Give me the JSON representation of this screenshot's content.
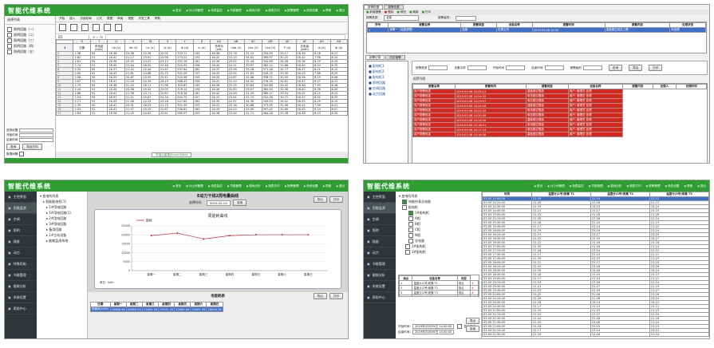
{
  "app": {
    "title": "智能代维系统",
    "menu": [
      "首页",
      "分公司管理",
      "电表监控",
      "节能管理",
      "能耗分析",
      "报表打印",
      "报警管理",
      "系统设置",
      "帮助",
      "退出"
    ]
  },
  "colors": {
    "brand_green": "#2e9e33",
    "alarm_red": "#d9261c",
    "selection_blue": "#3b6fd0",
    "dark_sidebar": "#2f3538"
  },
  "panel1": {
    "side_title": "选择列表",
    "tree": [
      "照明回路（一）",
      "照明回路（二）",
      "照明回路（三）",
      "照明回路（四）",
      "照明回路（五）"
    ],
    "ribbon_tabs": [
      "开始",
      "插入",
      "页面布局",
      "公式",
      "数据",
      "审阅",
      "视图",
      "开发工具",
      "帮助"
    ],
    "cellref": "D5",
    "formula_symbols": "✕ ✓ fx",
    "col_letters": [
      "S",
      "T",
      "U",
      "V",
      "W",
      "X",
      "Y",
      "Z",
      "AA",
      "AB",
      "AC",
      "AD",
      "AE",
      "AF",
      "AG",
      "AH"
    ],
    "head1": [
      "日期",
      "有电量 (kWh)",
      "Ua (V)",
      "Ub (V)",
      "Uc (V)",
      "Ia (A)",
      "Ib (A)",
      "Ic (A)",
      "总有功 (kW)",
      "Uab (V)",
      "Ubc (V)",
      "Uca (V)",
      "P (A)",
      "总电量 (kWh)",
      "Ia (A)",
      "Ib (A)"
    ],
    "rows": [
      [
        "2.36",
        "50",
        "16.38",
        "21.38",
        "25.26",
        "22.02",
        "333.71",
        "160",
        "16.38",
        "23.76",
        "31.15",
        "354.59",
        "33.17",
        "16.38",
        "8.18",
        "8.27"
      ],
      [
        "2.82",
        "51",
        "16.42",
        "21.17",
        "23.91",
        "22.96",
        "274.22",
        "155",
        "16.42",
        "22.15",
        "34.81",
        "380.97",
        "30.25",
        "16.42",
        "7.96",
        "8.10"
      ],
      [
        "2.61",
        "50",
        "16.38",
        "20.93",
        "24.57",
        "23.13",
        "352.16",
        "161",
        "16.38",
        "25.02",
        "32.44",
        "342.60",
        "34.28",
        "16.38",
        "8.33",
        "8.19"
      ],
      [
        "2.74",
        "51",
        "16.40",
        "21.44",
        "26.02",
        "22.48",
        "310.35",
        "158",
        "16.40",
        "24.11",
        "30.97",
        "365.12",
        "31.86",
        "16.40",
        "8.04",
        "8.35"
      ],
      [
        "2.35",
        "50",
        "16.37",
        "21.02",
        "25.44",
        "21.87",
        "297.64",
        "162",
        "16.37",
        "23.58",
        "33.26",
        "371.48",
        "32.77",
        "16.37",
        "8.21",
        "8.12"
      ],
      [
        "2.90",
        "52",
        "16.43",
        "21.61",
        "24.88",
        "22.75",
        "341.09",
        "157",
        "16.43",
        "22.94",
        "31.83",
        "349.25",
        "33.90",
        "16.43",
        "7.88",
        "8.29"
      ],
      [
        "2.58",
        "50",
        "16.39",
        "20.87",
        "25.93",
        "23.41",
        "322.56",
        "159",
        "16.39",
        "24.67",
        "32.08",
        "358.71",
        "30.95",
        "16.39",
        "8.15",
        "8.06"
      ],
      [
        "2.67",
        "51",
        "16.41",
        "21.29",
        "24.35",
        "22.19",
        "288.43",
        "156",
        "16.41",
        "23.20",
        "34.02",
        "376.30",
        "34.61",
        "16.41",
        "8.27",
        "8.31"
      ],
      [
        "2.79",
        "50",
        "16.38",
        "21.53",
        "26.11",
        "21.96",
        "305.87",
        "160",
        "16.38",
        "25.35",
        "30.64",
        "340.88",
        "31.42",
        "16.38",
        "7.93",
        "8.18"
      ],
      [
        "2.44",
        "51",
        "16.40",
        "20.98",
        "25.02",
        "23.05",
        "329.14",
        "158",
        "16.40",
        "22.83",
        "33.57",
        "362.54",
        "32.38",
        "16.40",
        "8.36",
        "8.09"
      ],
      [
        "2.86",
        "52",
        "16.42",
        "21.36",
        "24.71",
        "22.63",
        "316.28",
        "161",
        "16.42",
        "24.49",
        "31.29",
        "369.17",
        "33.54",
        "16.42",
        "8.11",
        "8.24"
      ],
      [
        "2.53",
        "50",
        "16.37",
        "21.11",
        "25.67",
        "22.34",
        "294.75",
        "157",
        "16.37",
        "23.91",
        "32.73",
        "352.06",
        "30.71",
        "16.37",
        "8.02",
        "8.33"
      ],
      [
        "2.71",
        "51",
        "16.39",
        "21.48",
        "24.19",
        "23.28",
        "347.62",
        "162",
        "16.39",
        "22.57",
        "34.36",
        "345.93",
        "34.02",
        "16.39",
        "8.29",
        "8.15"
      ],
      [
        "2.39",
        "50",
        "16.41",
        "20.91",
        "26.23",
        "21.79",
        "301.39",
        "155",
        "16.41",
        "25.18",
        "30.88",
        "373.65",
        "31.96",
        "16.41",
        "7.99",
        "8.21"
      ],
      [
        "2.93",
        "52",
        "16.43",
        "21.57",
        "25.15",
        "22.87",
        "336.81",
        "160",
        "16.43",
        "24.03",
        "33.09",
        "357.42",
        "32.89",
        "16.43",
        "8.24",
        "8.07"
      ],
      [
        "2.64",
        "51",
        "16.38",
        "21.05",
        "24.62",
        "22.51",
        "285.97",
        "159",
        "16.38",
        "23.44",
        "31.71",
        "364.28",
        "33.36",
        "16.38",
        "8.13",
        "8.30"
      ]
    ],
    "sheet_tab": "可读计量表(Excel Data)",
    "bottom_fields": [
      "选择设置",
      "开始时间",
      "结束时间"
    ],
    "bottom_buttons": [
      "查询",
      "导出打印"
    ],
    "bottom_label": "数据间隔"
  },
  "panel2": {
    "tabs": [
      "报警配置",
      "报警查看"
    ],
    "toolbar": [
      "新增报警",
      "删除",
      "修改",
      "刷新",
      "打印"
    ],
    "filter_label": "报警类型：",
    "filter_value": "全部",
    "count_label": "报警级别：",
    "grid_head": [
      "序号",
      "报警名称",
      "报警类型",
      "设备名称",
      "报警时间",
      "报警内容",
      "处理状态"
    ],
    "grid_selected": [
      "1",
      "报警一（温度超限）",
      "温度",
      "空调主机",
      "2019-03-06 10:25",
      "温度超过设定上限",
      "未处理"
    ],
    "lower_tabs": [
      "报警记录",
      "历史报警"
    ],
    "lower_labels": [
      "报警类型",
      "设备名称",
      "开始时间",
      "结束时间",
      "报警级别"
    ],
    "lower_buttons": [
      "查询",
      "导出",
      "打印"
    ],
    "list_title": "报警列表",
    "list_head": [
      "报警名称",
      "报警时间",
      "报警类型",
      "设备名称",
      "报警内容",
      "处理人",
      "处理时间"
    ],
    "list_items": [
      "配电柜1",
      "配电柜2",
      "配电柜3",
      "照明回路",
      "空调回路",
      "动力回路"
    ],
    "alarm_rows": [
      [
        "用户报警信息",
        "2019-03-06 10:25:11",
        "温度超过限值",
        "用户: 管理员 处理"
      ],
      [
        "用户报警信息",
        "2019-03-06 10:24:32",
        "电流超过限值",
        "用户: 管理员 处理"
      ],
      [
        "用户报警信息",
        "2019-03-06 10:23:57",
        "电压超过限值",
        "用户: 管理员 处理"
      ],
      [
        "用户报警信息",
        "2019-03-06 10:22:18",
        "温度超过限值",
        "用户: 管理员 处理"
      ],
      [
        "用户报警信息",
        "2019-03-06 10:21:43",
        "电流超过限值",
        "用户: 管理员 处理"
      ],
      [
        "用户报警信息",
        "2019-03-06 10:20:09",
        "电压超过限值",
        "用户: 管理员 处理"
      ],
      [
        "用户报警信息",
        "2019-03-06 10:19:26",
        "温度超过限值",
        "用户: 管理员 处理"
      ],
      [
        "用户报警信息",
        "2019-03-06 10:18:51",
        "电流超过限值",
        "用户: 管理员 处理"
      ],
      [
        "用户报警信息",
        "2019-03-06 10:17:14",
        "电压超过限值",
        "用户: 管理员 处理"
      ],
      [
        "用户报警信息",
        "2019-03-06 10:16:38",
        "温度超过限值",
        "用户: 管理员 处理"
      ]
    ]
  },
  "panel3": {
    "nav": [
      "主控界面",
      "用能监测",
      "空调",
      "照明",
      "插座",
      "动力",
      "特殊用电",
      "节能管理",
      "能耗分析",
      "系统设置",
      "帮助中心"
    ],
    "tree": [
      "变电所列表",
      "智能配电柜(1)",
      "1#用电回路",
      "1#用电回路(1)",
      "2#用电回路",
      "3#用电回路",
      "备用回路",
      "1#主站设备",
      "能耗监测系统"
    ],
    "header": "E动力干线2周电量曲线",
    "date_label": "选择时间：",
    "date_value": "2019-02-02",
    "date_button": "查询",
    "btn_export": "导出",
    "btn_print": "打印",
    "chart_title": "周能耗曲线",
    "legend": "能耗",
    "yaxis_unit": "单位：kWh",
    "table_title": "电能耗表",
    "table_head": [
      "日期",
      "星期一",
      "星期二",
      "星期三",
      "星期四",
      "星期五",
      "星期六",
      "星期日"
    ],
    "table_row": [
      "周能耗(kWh)",
      "19586.96",
      "20960.53",
      "17695.39",
      "19542.35",
      "20065.89",
      "20061.95",
      "20059.76"
    ],
    "table_buttons": [
      "导出",
      "打印"
    ]
  },
  "chart_data": {
    "type": "line",
    "title": "周能耗曲线",
    "categories": [
      "星期一",
      "星期二",
      "星期三",
      "星期四",
      "星期五",
      "星期六",
      "星期日"
    ],
    "series": [
      {
        "name": "能耗",
        "values": [
          19586.96,
          20960.53,
          17695.39,
          19542.35,
          20065.89,
          20061.95,
          20059.76
        ]
      }
    ],
    "ylabel": "单位：kWh",
    "yticks": [
      "0",
      "5000",
      "10000",
      "15000",
      "20000",
      "25000"
    ],
    "ylim": [
      0,
      25000
    ],
    "grid": true,
    "legend": "top-left"
  },
  "panel4": {
    "nav": [
      "主控界面",
      "用能监测",
      "空调",
      "照明",
      "插座",
      "动力",
      "节能管理",
      "能耗分析",
      "系统设置",
      "帮助中心"
    ],
    "tree_title": "变电所列表",
    "tree": [
      "电能抄表总电能",
      "配电柜",
      "1#配电柜",
      "A相",
      "B相",
      "C相",
      "N相",
      "总电量",
      "2#配电柜",
      "3#配电柜"
    ],
    "sel_head": [
      "测点",
      "设备名称",
      "类型"
    ],
    "sel_rows": [
      [
        "1",
        "温度计(1号)采集 T1",
        "测点"
      ],
      [
        "2",
        "温度计(2号)采集 T2",
        "测点"
      ],
      [
        "3",
        "温度计(3号)采集 T3",
        "测点"
      ],
      [
        "4",
        "温度计(4号)采集 T4",
        "测点"
      ]
    ],
    "time_start_label": "开始时间：",
    "time_start": "2019年03月05日 14:00:00",
    "time_end_label": "结束时间：",
    "time_end": "2019年03月06日 14:00:00",
    "check_label": "显示曲线",
    "btn_export": "导出",
    "btn_query": "查询",
    "grid_head": [
      "时间",
      "温度计(1号)采集 T1",
      "温度计(2号)采集 T2",
      "温度计(3号)采集 T3"
    ],
    "grid_rows": [
      [
        "03-05 14:00:00",
        "21.18",
        "21.14",
        "21.12"
      ],
      [
        "03-05 14:15:00",
        "21.20",
        "21.16",
        "21.13"
      ],
      [
        "03-05 14:30:00",
        "21.19",
        "21.15",
        "21.14"
      ],
      [
        "03-05 14:45:00",
        "21.21",
        "21.17",
        "21.15"
      ],
      [
        "03-05 15:00:00",
        "21.22",
        "21.18",
        "21.16"
      ],
      [
        "03-05 15:15:00",
        "21.20",
        "21.16",
        "21.14"
      ],
      [
        "03-05 15:30:00",
        "21.18",
        "21.15",
        "21.13"
      ],
      [
        "03-05 15:45:00",
        "21.17",
        "21.14",
        "21.12"
      ],
      [
        "03-05 16:00:00",
        "21.19",
        "21.16",
        "21.14"
      ],
      [
        "03-05 16:15:00",
        "21.21",
        "21.17",
        "21.15"
      ],
      [
        "03-05 16:30:00",
        "21.23",
        "21.19",
        "21.17"
      ],
      [
        "03-05 16:45:00",
        "21.22",
        "21.18",
        "21.16"
      ],
      [
        "03-05 17:00:00",
        "21.20",
        "21.16",
        "21.14"
      ],
      [
        "03-05 17:15:00",
        "21.18",
        "21.14",
        "21.12"
      ],
      [
        "03-05 17:30:00",
        "21.17",
        "21.13",
        "21.11"
      ],
      [
        "03-05 17:45:00",
        "21.19",
        "21.15",
        "21.13"
      ],
      [
        "03-05 18:00:00",
        "21.21",
        "21.17",
        "21.15"
      ],
      [
        "03-05 18:15:00",
        "21.22",
        "21.18",
        "21.16"
      ],
      [
        "03-05 18:30:00",
        "21.20",
        "21.16",
        "21.14"
      ],
      [
        "03-05 18:45:00",
        "21.18",
        "21.15",
        "21.13"
      ],
      [
        "03-05 19:00:00",
        "21.17",
        "21.14",
        "21.12"
      ],
      [
        "03-05 19:15:00",
        "21.19",
        "21.16",
        "21.14"
      ],
      [
        "03-05 19:30:00",
        "21.21",
        "21.17",
        "21.15"
      ],
      [
        "03-05 19:45:00",
        "21.23",
        "21.19",
        "21.17"
      ],
      [
        "03-05 20:00:00",
        "21.22",
        "21.18",
        "21.16"
      ],
      [
        "03-05 20:15:00",
        "21.20",
        "21.16",
        "21.14"
      ],
      [
        "03-05 20:30:00",
        "21.18",
        "21.14",
        "21.12"
      ],
      [
        "03-05 20:45:00",
        "21.17",
        "21.13",
        "21.11"
      ],
      [
        "03-05 21:00:00",
        "21.19",
        "21.15",
        "21.13"
      ],
      [
        "03-05 21:15:00",
        "21.21",
        "21.17",
        "21.15"
      ],
      [
        "03-05 21:30:00",
        "21.22",
        "21.18",
        "21.16"
      ],
      [
        "03-05 21:45:00",
        "21.20",
        "21.16",
        "21.14"
      ],
      [
        "03-05 22:00:00",
        "21.18",
        "21.15",
        "21.13"
      ],
      [
        "03-05 22:15:00",
        "21.17",
        "21.14",
        "21.12"
      ],
      [
        "03-05 22:30:00",
        "21.19",
        "21.16",
        "21.14"
      ]
    ]
  }
}
